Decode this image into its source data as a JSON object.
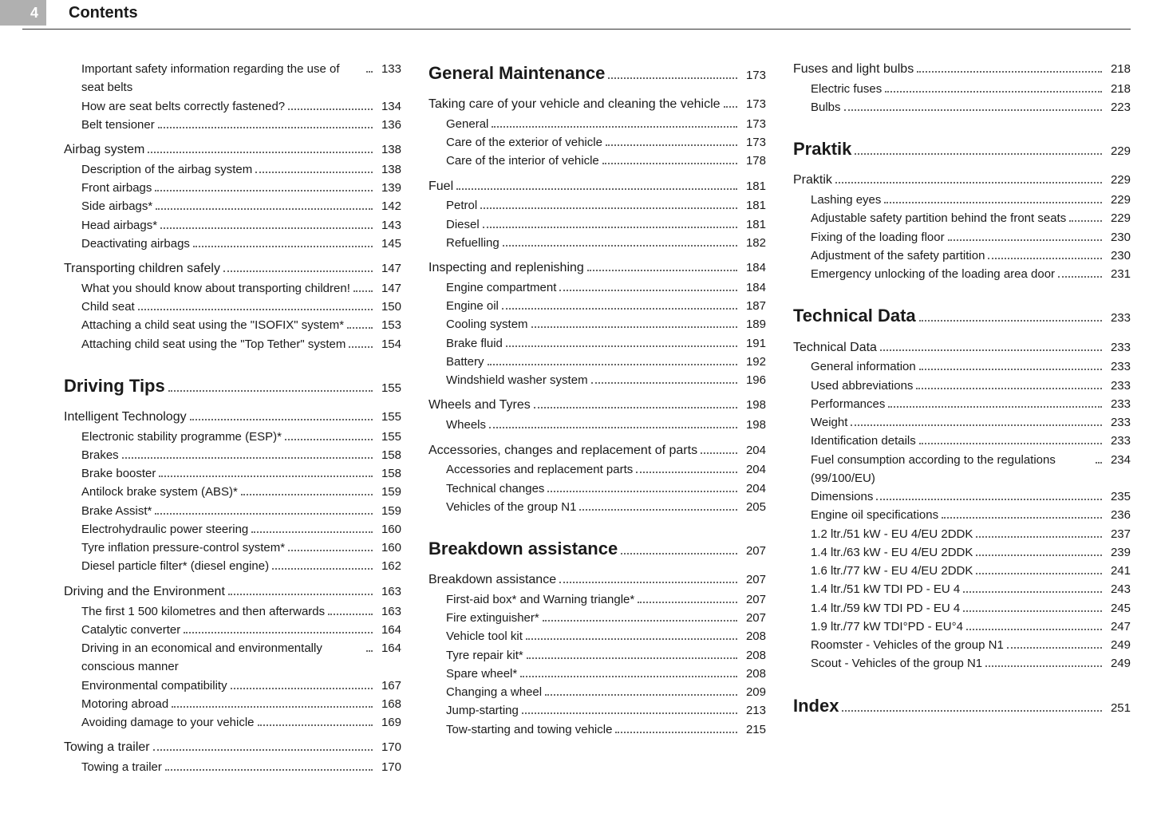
{
  "page_number": "4",
  "header_title": "Contents",
  "columns": [
    {
      "items": [
        {
          "type": "sub",
          "label": "Important safety information regarding the use of seat belts",
          "page": "133"
        },
        {
          "type": "sub",
          "label": "How are seat belts correctly fastened?",
          "page": "134"
        },
        {
          "type": "sub",
          "label": "Belt tensioner",
          "page": "136"
        },
        {
          "type": "section",
          "label": "Airbag system",
          "page": "138"
        },
        {
          "type": "sub",
          "label": "Description of the airbag system",
          "page": "138"
        },
        {
          "type": "sub",
          "label": "Front airbags",
          "page": "139"
        },
        {
          "type": "sub",
          "label": "Side airbags*",
          "page": "142"
        },
        {
          "type": "sub",
          "label": "Head airbags*",
          "page": "143"
        },
        {
          "type": "sub",
          "label": "Deactivating airbags",
          "page": "145"
        },
        {
          "type": "section",
          "label": "Transporting children safely",
          "page": "147"
        },
        {
          "type": "sub",
          "label": "What you should know about transporting children!",
          "page": "147"
        },
        {
          "type": "sub",
          "label": "Child seat",
          "page": "150"
        },
        {
          "type": "sub",
          "label": "Attaching a child seat using the \"ISOFIX\" system*",
          "page": "153"
        },
        {
          "type": "sub",
          "label": "Attaching child seat using the \"Top Tether\" system",
          "page": "154"
        },
        {
          "type": "major",
          "label": "Driving Tips",
          "page": "155"
        },
        {
          "type": "section",
          "label": "Intelligent Technology",
          "page": "155"
        },
        {
          "type": "sub",
          "label": "Electronic stability programme (ESP)*",
          "page": "155"
        },
        {
          "type": "sub",
          "label": "Brakes",
          "page": "158"
        },
        {
          "type": "sub",
          "label": "Brake booster",
          "page": "158"
        },
        {
          "type": "sub",
          "label": "Antilock brake system (ABS)*",
          "page": "159"
        },
        {
          "type": "sub",
          "label": "Brake Assist*",
          "page": "159"
        },
        {
          "type": "sub",
          "label": "Electrohydraulic power steering",
          "page": "160"
        },
        {
          "type": "sub",
          "label": "Tyre inflation pressure-control system*",
          "page": "160"
        },
        {
          "type": "sub",
          "label": "Diesel particle filter* (diesel engine)",
          "page": "162"
        },
        {
          "type": "section",
          "label": "Driving and the Environment",
          "page": "163"
        },
        {
          "type": "sub",
          "label": "The first 1 500 kilometres and then afterwards",
          "page": "163"
        },
        {
          "type": "sub",
          "label": "Catalytic converter",
          "page": "164"
        },
        {
          "type": "sub",
          "label": "Driving in an economical and environmentally conscious manner",
          "page": "164"
        },
        {
          "type": "sub",
          "label": "Environmental compatibility",
          "page": "167"
        },
        {
          "type": "sub",
          "label": "Motoring abroad",
          "page": "168"
        },
        {
          "type": "sub",
          "label": "Avoiding damage to your vehicle",
          "page": "169"
        },
        {
          "type": "section",
          "label": "Towing a trailer",
          "page": "170"
        },
        {
          "type": "sub",
          "label": "Towing a trailer",
          "page": "170"
        }
      ]
    },
    {
      "items": [
        {
          "type": "major",
          "label": "General Maintenance",
          "page": "173",
          "first": true
        },
        {
          "type": "section",
          "label": "Taking care of your vehicle and cleaning the vehicle",
          "page": "173"
        },
        {
          "type": "sub",
          "label": "General",
          "page": "173"
        },
        {
          "type": "sub",
          "label": "Care of the exterior of vehicle",
          "page": "173"
        },
        {
          "type": "sub",
          "label": "Care of the interior of vehicle",
          "page": "178"
        },
        {
          "type": "section",
          "label": "Fuel",
          "page": "181"
        },
        {
          "type": "sub",
          "label": "Petrol",
          "page": "181"
        },
        {
          "type": "sub",
          "label": "Diesel",
          "page": "181"
        },
        {
          "type": "sub",
          "label": "Refuelling",
          "page": "182"
        },
        {
          "type": "section",
          "label": "Inspecting and replenishing",
          "page": "184"
        },
        {
          "type": "sub",
          "label": "Engine compartment",
          "page": "184"
        },
        {
          "type": "sub",
          "label": "Engine oil",
          "page": "187"
        },
        {
          "type": "sub",
          "label": "Cooling system",
          "page": "189"
        },
        {
          "type": "sub",
          "label": "Brake fluid",
          "page": "191"
        },
        {
          "type": "sub",
          "label": "Battery",
          "page": "192"
        },
        {
          "type": "sub",
          "label": "Windshield washer system",
          "page": "196"
        },
        {
          "type": "section",
          "label": "Wheels and Tyres",
          "page": "198"
        },
        {
          "type": "sub",
          "label": "Wheels",
          "page": "198"
        },
        {
          "type": "section",
          "label": "Accessories, changes and replacement of parts",
          "page": "204"
        },
        {
          "type": "sub",
          "label": "Accessories and replacement parts",
          "page": "204"
        },
        {
          "type": "sub",
          "label": "Technical changes",
          "page": "204"
        },
        {
          "type": "sub",
          "label": "Vehicles of the group N1",
          "page": "205"
        },
        {
          "type": "major",
          "label": "Breakdown assistance",
          "page": "207"
        },
        {
          "type": "section",
          "label": "Breakdown assistance",
          "page": "207"
        },
        {
          "type": "sub",
          "label": "First-aid box* and Warning triangle*",
          "page": "207"
        },
        {
          "type": "sub",
          "label": "Fire extinguisher*",
          "page": "207"
        },
        {
          "type": "sub",
          "label": "Vehicle tool kit",
          "page": "208"
        },
        {
          "type": "sub",
          "label": "Tyre repair kit*",
          "page": "208"
        },
        {
          "type": "sub",
          "label": "Spare wheel*",
          "page": "208"
        },
        {
          "type": "sub",
          "label": "Changing a wheel",
          "page": "209"
        },
        {
          "type": "sub",
          "label": "Jump-starting",
          "page": "213"
        },
        {
          "type": "sub",
          "label": "Tow-starting and towing vehicle",
          "page": "215"
        }
      ]
    },
    {
      "items": [
        {
          "type": "section",
          "label": "Fuses and light bulbs",
          "page": "218",
          "first": true
        },
        {
          "type": "sub",
          "label": "Electric fuses",
          "page": "218"
        },
        {
          "type": "sub",
          "label": "Bulbs",
          "page": "223"
        },
        {
          "type": "major",
          "label": "Praktik",
          "page": "229"
        },
        {
          "type": "section",
          "label": "Praktik",
          "page": "229"
        },
        {
          "type": "sub",
          "label": "Lashing eyes",
          "page": "229"
        },
        {
          "type": "sub",
          "label": "Adjustable safety partition behind the front seats",
          "page": "229"
        },
        {
          "type": "sub",
          "label": "Fixing of the loading floor",
          "page": "230"
        },
        {
          "type": "sub",
          "label": "Adjustment of the safety partition",
          "page": "230"
        },
        {
          "type": "sub",
          "label": "Emergency unlocking of the loading area door",
          "page": "231"
        },
        {
          "type": "major",
          "label": "Technical Data",
          "page": "233"
        },
        {
          "type": "section",
          "label": "Technical Data",
          "page": "233"
        },
        {
          "type": "sub",
          "label": "General information",
          "page": "233"
        },
        {
          "type": "sub",
          "label": "Used abbreviations",
          "page": "233"
        },
        {
          "type": "sub",
          "label": "Performances",
          "page": "233"
        },
        {
          "type": "sub",
          "label": "Weight",
          "page": "233"
        },
        {
          "type": "sub",
          "label": "Identification details",
          "page": "233"
        },
        {
          "type": "sub",
          "label": "Fuel consumption according to the regulations (99/100/EU)",
          "page": "234"
        },
        {
          "type": "sub",
          "label": "Dimensions",
          "page": "235"
        },
        {
          "type": "sub",
          "label": "Engine oil specifications",
          "page": "236"
        },
        {
          "type": "sub",
          "label": "1.2 ltr./51 kW - EU 4/EU 2DDK",
          "page": "237"
        },
        {
          "type": "sub",
          "label": "1.4 ltr./63 kW - EU 4/EU 2DDK",
          "page": "239"
        },
        {
          "type": "sub",
          "label": "1.6 ltr./77 kW - EU 4/EU 2DDK",
          "page": "241"
        },
        {
          "type": "sub",
          "label": "1.4 ltr./51 kW TDI PD - EU 4",
          "page": "243"
        },
        {
          "type": "sub",
          "label": "1.4 ltr./59 kW TDI PD - EU 4",
          "page": "245"
        },
        {
          "type": "sub",
          "label": "1.9 ltr./77 kW TDI°PD - EU°4",
          "page": "247"
        },
        {
          "type": "sub",
          "label": "Roomster - Vehicles of the group N1",
          "page": "249"
        },
        {
          "type": "sub",
          "label": "Scout - Vehicles of the group N1",
          "page": "249"
        },
        {
          "type": "major",
          "label": "Index",
          "page": "251"
        }
      ]
    }
  ]
}
